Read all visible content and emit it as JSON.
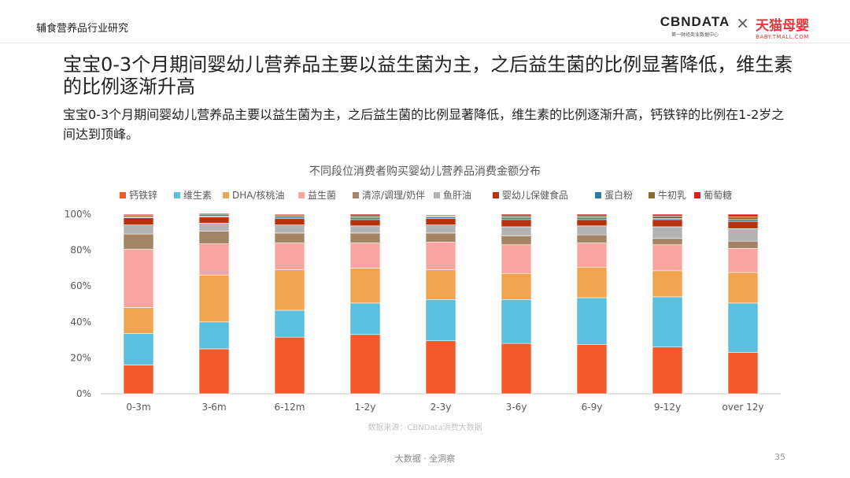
{
  "header": {
    "section": "辅食营养品行业研究",
    "logo_cbn": "CBNDATA",
    "logo_cbn_sub": "第一财经商业数据中心",
    "logo_sep": "×",
    "logo_tmall": "天猫母婴",
    "logo_tmall_sub": "BABY.TMALL.COM"
  },
  "title": "宝宝0-3个月期间婴幼儿营养品主要以益生菌为主，之后益生菌的比例显著降低，维生素的比例逐渐升高",
  "subtitle": "宝宝0-3个月期间婴幼儿营养品主要以益生菌为主，之后益生菌的比例显著降低，维生素的比例逐渐升高，钙铁锌的比例在1-2岁之间达到顶峰。",
  "footer": {
    "center": "大数据 · 全洞察",
    "page": "35"
  },
  "colors": {
    "钙铁锌": "#F15A2B",
    "维生素": "#5BC0DE",
    "DHA/核桃油": "#F0A450",
    "益生菌": "#FBA5A0",
    "清凉/调理/奶伴": "#A38566",
    "鱼肝油": "#B3B3B3",
    "婴幼儿保健食品": "#B8320E",
    "蛋白粉": "#2A7BA6",
    "牛初乳": "#8F6A2E",
    "葡萄糖": "#D9231C"
  },
  "chart_data": {
    "type": "bar",
    "stacked": true,
    "title": "不同段位消费者购买婴幼儿营养品消费金额分布",
    "source": "数据来源：CBNData消费大数据",
    "categories": [
      "0-3m",
      "3-6m",
      "6-12m",
      "1-2y",
      "2-3y",
      "3-6y",
      "6-9y",
      "9-12y",
      "over 12y"
    ],
    "ylim": [
      0,
      100
    ],
    "yticks": [
      "0%",
      "20%",
      "40%",
      "60%",
      "80%",
      "100%"
    ],
    "legend_position": "top",
    "grid": false,
    "series": [
      {
        "name": "钙铁锌",
        "values": [
          16,
          25,
          31.5,
          33,
          29.5,
          28,
          27.5,
          26,
          23
        ]
      },
      {
        "name": "维生素",
        "values": [
          17.5,
          15,
          15,
          17.5,
          23,
          24.5,
          26,
          28,
          27.5
        ]
      },
      {
        "name": "DHA/核桃油",
        "values": [
          14.5,
          26,
          22.5,
          19.5,
          16.5,
          14.5,
          17,
          14.5,
          17
        ]
      },
      {
        "name": "益生菌",
        "values": [
          32.5,
          17.5,
          15,
          14,
          15.5,
          16,
          13.5,
          14.5,
          13.5
        ]
      },
      {
        "name": "清凉/调理/奶伴",
        "values": [
          8.5,
          7,
          5.5,
          5.5,
          5,
          5,
          4.5,
          3.5,
          4
        ]
      },
      {
        "name": "鱼肝油",
        "values": [
          5,
          4.5,
          4.5,
          4,
          4.5,
          5,
          5,
          6.5,
          7
        ]
      },
      {
        "name": "婴幼儿保健食品",
        "values": [
          4,
          3.5,
          3.5,
          3.5,
          3.5,
          4,
          3.5,
          4,
          4
        ]
      },
      {
        "name": "蛋白粉",
        "values": [
          0.5,
          0.5,
          1,
          1,
          1,
          1,
          1,
          0.5,
          1
        ]
      },
      {
        "name": "牛初乳",
        "values": [
          1,
          1,
          1,
          1,
          0.5,
          1,
          1,
          1.5,
          1.5
        ]
      },
      {
        "name": "葡萄糖",
        "values": [
          0.5,
          0.5,
          0.5,
          1,
          0.5,
          1,
          1,
          1,
          1.5
        ]
      }
    ]
  }
}
